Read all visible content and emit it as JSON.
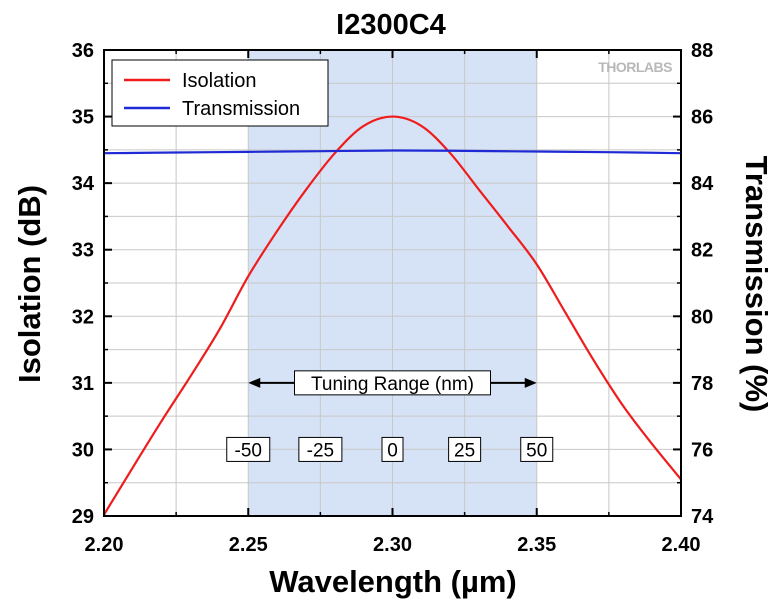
{
  "chart_data": {
    "type": "line",
    "title": "I2300C4",
    "xlabel": "Wavelength (µm)",
    "ylabel": "Isolation (dB)",
    "y2label": "Transmission (%)",
    "xlim": [
      2.2,
      2.4
    ],
    "ylim": [
      29,
      36
    ],
    "y2lim": [
      74,
      88
    ],
    "x_ticks": [
      "2.20",
      "2.25",
      "2.30",
      "2.35",
      "2.40"
    ],
    "y_ticks": [
      "29",
      "30",
      "31",
      "32",
      "33",
      "34",
      "35",
      "36"
    ],
    "y2_ticks": [
      "74",
      "76",
      "78",
      "80",
      "82",
      "84",
      "86",
      "88"
    ],
    "grid": true,
    "legend_position": "top-left",
    "logo": "THORLABS",
    "shaded_region": {
      "x": [
        2.25,
        2.35
      ],
      "color": "#d6e2f5"
    },
    "annotation": {
      "label": "Tuning Range (nm)",
      "y": 31,
      "x_from": 2.25,
      "x_to": 2.35,
      "markers": [
        {
          "label": "-50",
          "x": 2.25
        },
        {
          "label": "-25",
          "x": 2.275
        },
        {
          "label": "0",
          "x": 2.3
        },
        {
          "label": "25",
          "x": 2.325
        },
        {
          "label": "50",
          "x": 2.35
        }
      ],
      "markers_y": 30
    },
    "series": [
      {
        "name": "Isolation",
        "axis": "left",
        "color": "#ee1c1c",
        "x": [
          2.2,
          2.21,
          2.22,
          2.23,
          2.24,
          2.25,
          2.26,
          2.27,
          2.28,
          2.29,
          2.3,
          2.31,
          2.32,
          2.33,
          2.34,
          2.35,
          2.36,
          2.37,
          2.38,
          2.39,
          2.4
        ],
        "y": [
          29.02,
          29.73,
          30.43,
          31.1,
          31.8,
          32.6,
          33.28,
          33.9,
          34.45,
          34.86,
          35.0,
          34.86,
          34.45,
          33.9,
          33.35,
          32.78,
          32.05,
          31.32,
          30.65,
          30.08,
          29.55
        ]
      },
      {
        "name": "Transmission",
        "axis": "right",
        "color": "#1f2ad6",
        "x": [
          2.2,
          2.225,
          2.25,
          2.275,
          2.3,
          2.325,
          2.35,
          2.375,
          2.4
        ],
        "y": [
          84.9,
          84.92,
          84.94,
          84.96,
          84.98,
          84.97,
          84.95,
          84.93,
          84.9
        ]
      }
    ]
  }
}
